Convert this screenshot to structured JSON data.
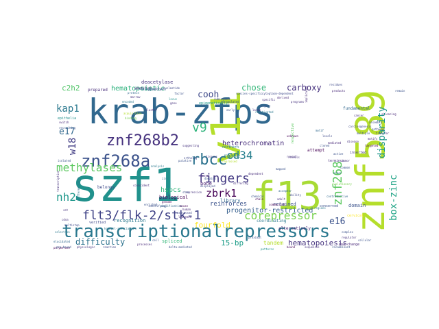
{
  "words": [
    {
      "text": "krab-zfps",
      "color": "#31688e"
    },
    {
      "text": "szf1",
      "color": "#21918c"
    },
    {
      "text": "v11",
      "color": "#b5de2b"
    },
    {
      "text": "znf589",
      "color": "#b5de2b"
    },
    {
      "text": "f13",
      "color": "#a8db34"
    },
    {
      "text": "transcriptionalrepressors",
      "color": "#2a788e"
    },
    {
      "text": "znf268b2",
      "color": "#46327e"
    },
    {
      "text": "znf268a",
      "color": "#3b528b"
    },
    {
      "text": "flt3/flk-2/stk-1",
      "color": "#404387"
    },
    {
      "text": "rbcc",
      "color": "#2c728e"
    },
    {
      "text": "fingers",
      "color": "#443a83"
    },
    {
      "text": "znf268",
      "color": "#5ec962"
    },
    {
      "text": "methylases",
      "color": "#5ec962"
    },
    {
      "text": "box-zinc",
      "color": "#20a486"
    },
    {
      "text": "disparity",
      "color": "#1f988b"
    },
    {
      "text": "corepressor",
      "color": "#7ad151"
    },
    {
      "text": "v9",
      "color": "#2fb47c"
    },
    {
      "text": "w18",
      "color": "#433e85"
    },
    {
      "text": "cd34",
      "color": "#277f8e"
    },
    {
      "text": "nh2",
      "color": "#1f988b"
    },
    {
      "text": "zbrk1",
      "color": "#440154"
    },
    {
      "text": "kap1",
      "color": "#2a788e"
    },
    {
      "text": "e17",
      "color": "#31688e"
    },
    {
      "text": "e16",
      "color": "#3b528b"
    },
    {
      "text": "cooh",
      "color": "#3e4989"
    },
    {
      "text": "carboxy",
      "color": "#46327e"
    },
    {
      "text": "chose",
      "color": "#35b779"
    },
    {
      "text": "c2h2",
      "color": "#52c569"
    },
    {
      "text": "hematopoietic",
      "color": "#2db27d"
    },
    {
      "text": "hematopoiesis",
      "color": "#46337f"
    },
    {
      "text": "heterochromatin",
      "color": "#472d7b"
    },
    {
      "text": "progenitor-restricted",
      "color": "#355f8d"
    },
    {
      "text": "fourfold",
      "color": "#fde725"
    },
    {
      "text": "difficulty",
      "color": "#2c728e"
    },
    {
      "text": "15-bp",
      "color": "#1f9e89"
    },
    {
      "text": "hspcs",
      "color": "#31b57b"
    },
    {
      "text": "reinforces",
      "color": "#3b528b"
    },
    {
      "text": "rnase",
      "color": "#2a788e"
    },
    {
      "text": "deacetylase",
      "color": "#46327e"
    },
    {
      "text": "biological",
      "color": "#440154"
    },
    {
      "text": "retained",
      "color": "#3b528b"
    },
    {
      "text": "library",
      "color": "#31688e"
    },
    {
      "text": "bone",
      "color": "#482173"
    },
    {
      "text": "recognition",
      "color": "#2a788e"
    },
    {
      "text": "tandem",
      "color": "#b5de2b"
    },
    {
      "text": "domain",
      "color": "#3b528b"
    },
    {
      "text": "spliced",
      "color": "#35b779"
    },
    {
      "text": "belongs",
      "color": "#3e4989"
    },
    {
      "text": "prepared",
      "color": "#472d7b"
    },
    {
      "text": "coordinating",
      "color": "#2a788e"
    },
    {
      "text": "alternatively",
      "color": "#482878"
    },
    {
      "text": "attempt",
      "color": "#440154"
    },
    {
      "text": "epithelia",
      "color": "#21918c"
    },
    {
      "text": "verified",
      "color": "#3e4989"
    },
    {
      "text": "fundamental",
      "color": "#31688e"
    },
    {
      "text": "northern",
      "color": "#2a788e"
    },
    {
      "text": "respective",
      "color": "#5ec962"
    },
    {
      "text": "conserved",
      "color": "#3b528b"
    },
    {
      "text": "inserted",
      "color": "#443a83"
    },
    {
      "text": "terminus",
      "color": "#472d7b"
    },
    {
      "text": "dna-change",
      "color": "#482878"
    },
    {
      "text": "cervical",
      "color": "#fde725"
    },
    {
      "text": "reprossed",
      "color": "#b5de2b"
    },
    {
      "text": "epigenetically",
      "color": "#1f988b"
    },
    {
      "text": "kruppel-associated",
      "color": "#2a788e"
    },
    {
      "text": "acquisition",
      "color": "#b5de2b"
    },
    {
      "text": "marrow",
      "color": "#46327e"
    },
    {
      "text": "recruiting",
      "color": "#3b528b"
    },
    {
      "text": "transcription",
      "color": "#46327e"
    },
    {
      "text": "differentially",
      "color": "#2c728e"
    },
    {
      "text": "amplification",
      "color": "#31688e"
    },
    {
      "text": "regions",
      "color": "#2a788e"
    },
    {
      "text": "carcinogenesis",
      "color": "#3e4989"
    },
    {
      "text": "polymerase",
      "color": "#440154"
    },
    {
      "text": "evolutionary",
      "color": "#7ad151"
    },
    {
      "text": "genome",
      "color": "#440154"
    },
    {
      "text": "family",
      "color": "#3b528b"
    },
    {
      "text": "displayed",
      "color": "#3e4989"
    },
    {
      "text": "differing",
      "color": "#46327e"
    },
    {
      "text": "coincident",
      "color": "#472d7b"
    },
    {
      "text": "silencing",
      "color": "#482878"
    },
    {
      "text": "remain",
      "color": "#3b528b"
    },
    {
      "text": "reveals",
      "color": "#46327e"
    },
    {
      "text": "isolated",
      "color": "#3b528b"
    },
    {
      "text": "products",
      "color": "#482878"
    },
    {
      "text": "residues",
      "color": "#3e4989"
    },
    {
      "text": "proximal",
      "color": "#3b528b"
    },
    {
      "text": "specific",
      "color": "#46327e"
    },
    {
      "text": "leukemia",
      "color": "#472d7b"
    },
    {
      "text": "motif",
      "color": "#31688e"
    },
    {
      "text": "cell",
      "color": "#3b528b"
    },
    {
      "text": "zinc",
      "color": "#2a788e"
    },
    {
      "text": "nucleotide",
      "color": "#3e4989"
    },
    {
      "text": "chromatin-modifying",
      "color": "#3b528b"
    },
    {
      "text": "repression",
      "color": "#46327e"
    },
    {
      "text": "identified",
      "color": "#472d7b"
    },
    {
      "text": "stem",
      "color": "#3b528b"
    },
    {
      "text": "encoded",
      "color": "#2a788e"
    },
    {
      "text": "human",
      "color": "#482878"
    },
    {
      "text": "mouse",
      "color": "#440154"
    },
    {
      "text": "cdna",
      "color": "#46327e"
    },
    {
      "text": "expressed",
      "color": "#3e4989"
    },
    {
      "text": "binding",
      "color": "#7ad151"
    },
    {
      "text": "protein",
      "color": "#31688e"
    },
    {
      "text": "factor",
      "color": "#3b528b"
    },
    {
      "text": "locus",
      "color": "#21918c"
    },
    {
      "text": "gene",
      "color": "#46327e"
    },
    {
      "text": "primitive",
      "color": "#3b528b"
    },
    {
      "text": "lineage",
      "color": "#2a788e"
    },
    {
      "text": "cluster",
      "color": "#472d7b"
    },
    {
      "text": "pre-bound",
      "color": "#3b528b"
    },
    {
      "text": "physiologic",
      "color": "#46327e"
    },
    {
      "text": "reaction",
      "color": "#3e4989"
    },
    {
      "text": "processes",
      "color": "#482878"
    },
    {
      "text": "delta-mediated",
      "color": "#3b528b"
    },
    {
      "text": "patterns",
      "color": "#21918c"
    },
    {
      "text": "bound",
      "color": "#440154"
    },
    {
      "text": "sequences",
      "color": "#46327e"
    },
    {
      "text": "recombinant",
      "color": "#3b528b"
    },
    {
      "text": "selection",
      "color": "#2a788e"
    },
    {
      "text": "elucidated",
      "color": "#31688e"
    },
    {
      "text": "cytoplasm-dependent",
      "color": "#3e4989"
    },
    {
      "text": "species-specific",
      "color": "#3b528b"
    },
    {
      "text": "programs",
      "color": "#46327e"
    },
    {
      "text": "implicated",
      "color": "#472d7b"
    },
    {
      "text": "highly",
      "color": "#3b528b"
    },
    {
      "text": "unknown",
      "color": "#440154"
    },
    {
      "text": "derived",
      "color": "#482878"
    },
    {
      "text": "putative",
      "color": "#3b528b"
    },
    {
      "text": "ortholog",
      "color": "#3e4989"
    },
    {
      "text": "tissues",
      "color": "#46327e"
    },
    {
      "text": "analysis",
      "color": "#2a788e"
    },
    {
      "text": "mapped",
      "color": "#3b528b"
    },
    {
      "text": "suggesting",
      "color": "#46327e"
    },
    {
      "text": "identifying",
      "color": "#3b528b"
    },
    {
      "text": "commercial",
      "color": "#440154"
    },
    {
      "text": "contradictive",
      "color": "#31688e"
    },
    {
      "text": "set",
      "color": "#46327e"
    },
    {
      "text": "multistep",
      "color": "#3e4989"
    },
    {
      "text": "switch",
      "color": "#482878"
    },
    {
      "text": "enriched",
      "color": "#3b528b"
    },
    {
      "text": "dependent",
      "color": "#472d7b"
    },
    {
      "text": "large",
      "color": "#46327e"
    },
    {
      "text": "early",
      "color": "#3b528b"
    },
    {
      "text": "reactivated",
      "color": "#2a788e"
    },
    {
      "text": "subsequent",
      "color": "#3e4989"
    },
    {
      "text": "deregulated",
      "color": "#3b528b"
    },
    {
      "text": "reveal",
      "color": "#46327e"
    },
    {
      "text": "domains",
      "color": "#3b528b"
    },
    {
      "text": "sense",
      "color": "#482878"
    },
    {
      "text": "chain",
      "color": "#440154"
    },
    {
      "text": "chemical",
      "color": "#3b528b"
    },
    {
      "text": "adult",
      "color": "#46327e"
    },
    {
      "text": "ability",
      "color": "#3e4989"
    },
    {
      "text": "acceptor",
      "color": "#31688e"
    },
    {
      "text": "cellular",
      "color": "#3b528b"
    },
    {
      "text": "regulator",
      "color": "#46327e"
    },
    {
      "text": "complex",
      "color": "#3b528b"
    },
    {
      "text": "motifs",
      "color": "#482878"
    },
    {
      "text": "assembly",
      "color": "#3e4989"
    },
    {
      "text": "pathways",
      "color": "#3b528b"
    },
    {
      "text": "transfer",
      "color": "#46327e"
    },
    {
      "text": "cancer",
      "color": "#472d7b"
    },
    {
      "text": "multiple",
      "color": "#3b528b"
    },
    {
      "text": "targeted",
      "color": "#440154"
    },
    {
      "text": "disease",
      "color": "#46327e"
    },
    {
      "text": "cloned",
      "color": "#3b528b"
    },
    {
      "text": "levels",
      "color": "#3e4989"
    },
    {
      "text": "mediated",
      "color": "#482878"
    },
    {
      "text": "active",
      "color": "#3b528b"
    },
    {
      "text": "tumor",
      "color": "#46327e"
    },
    {
      "text": "common",
      "color": "#3b528b"
    },
    {
      "text": "order",
      "color": "#31688e"
    }
  ]
}
